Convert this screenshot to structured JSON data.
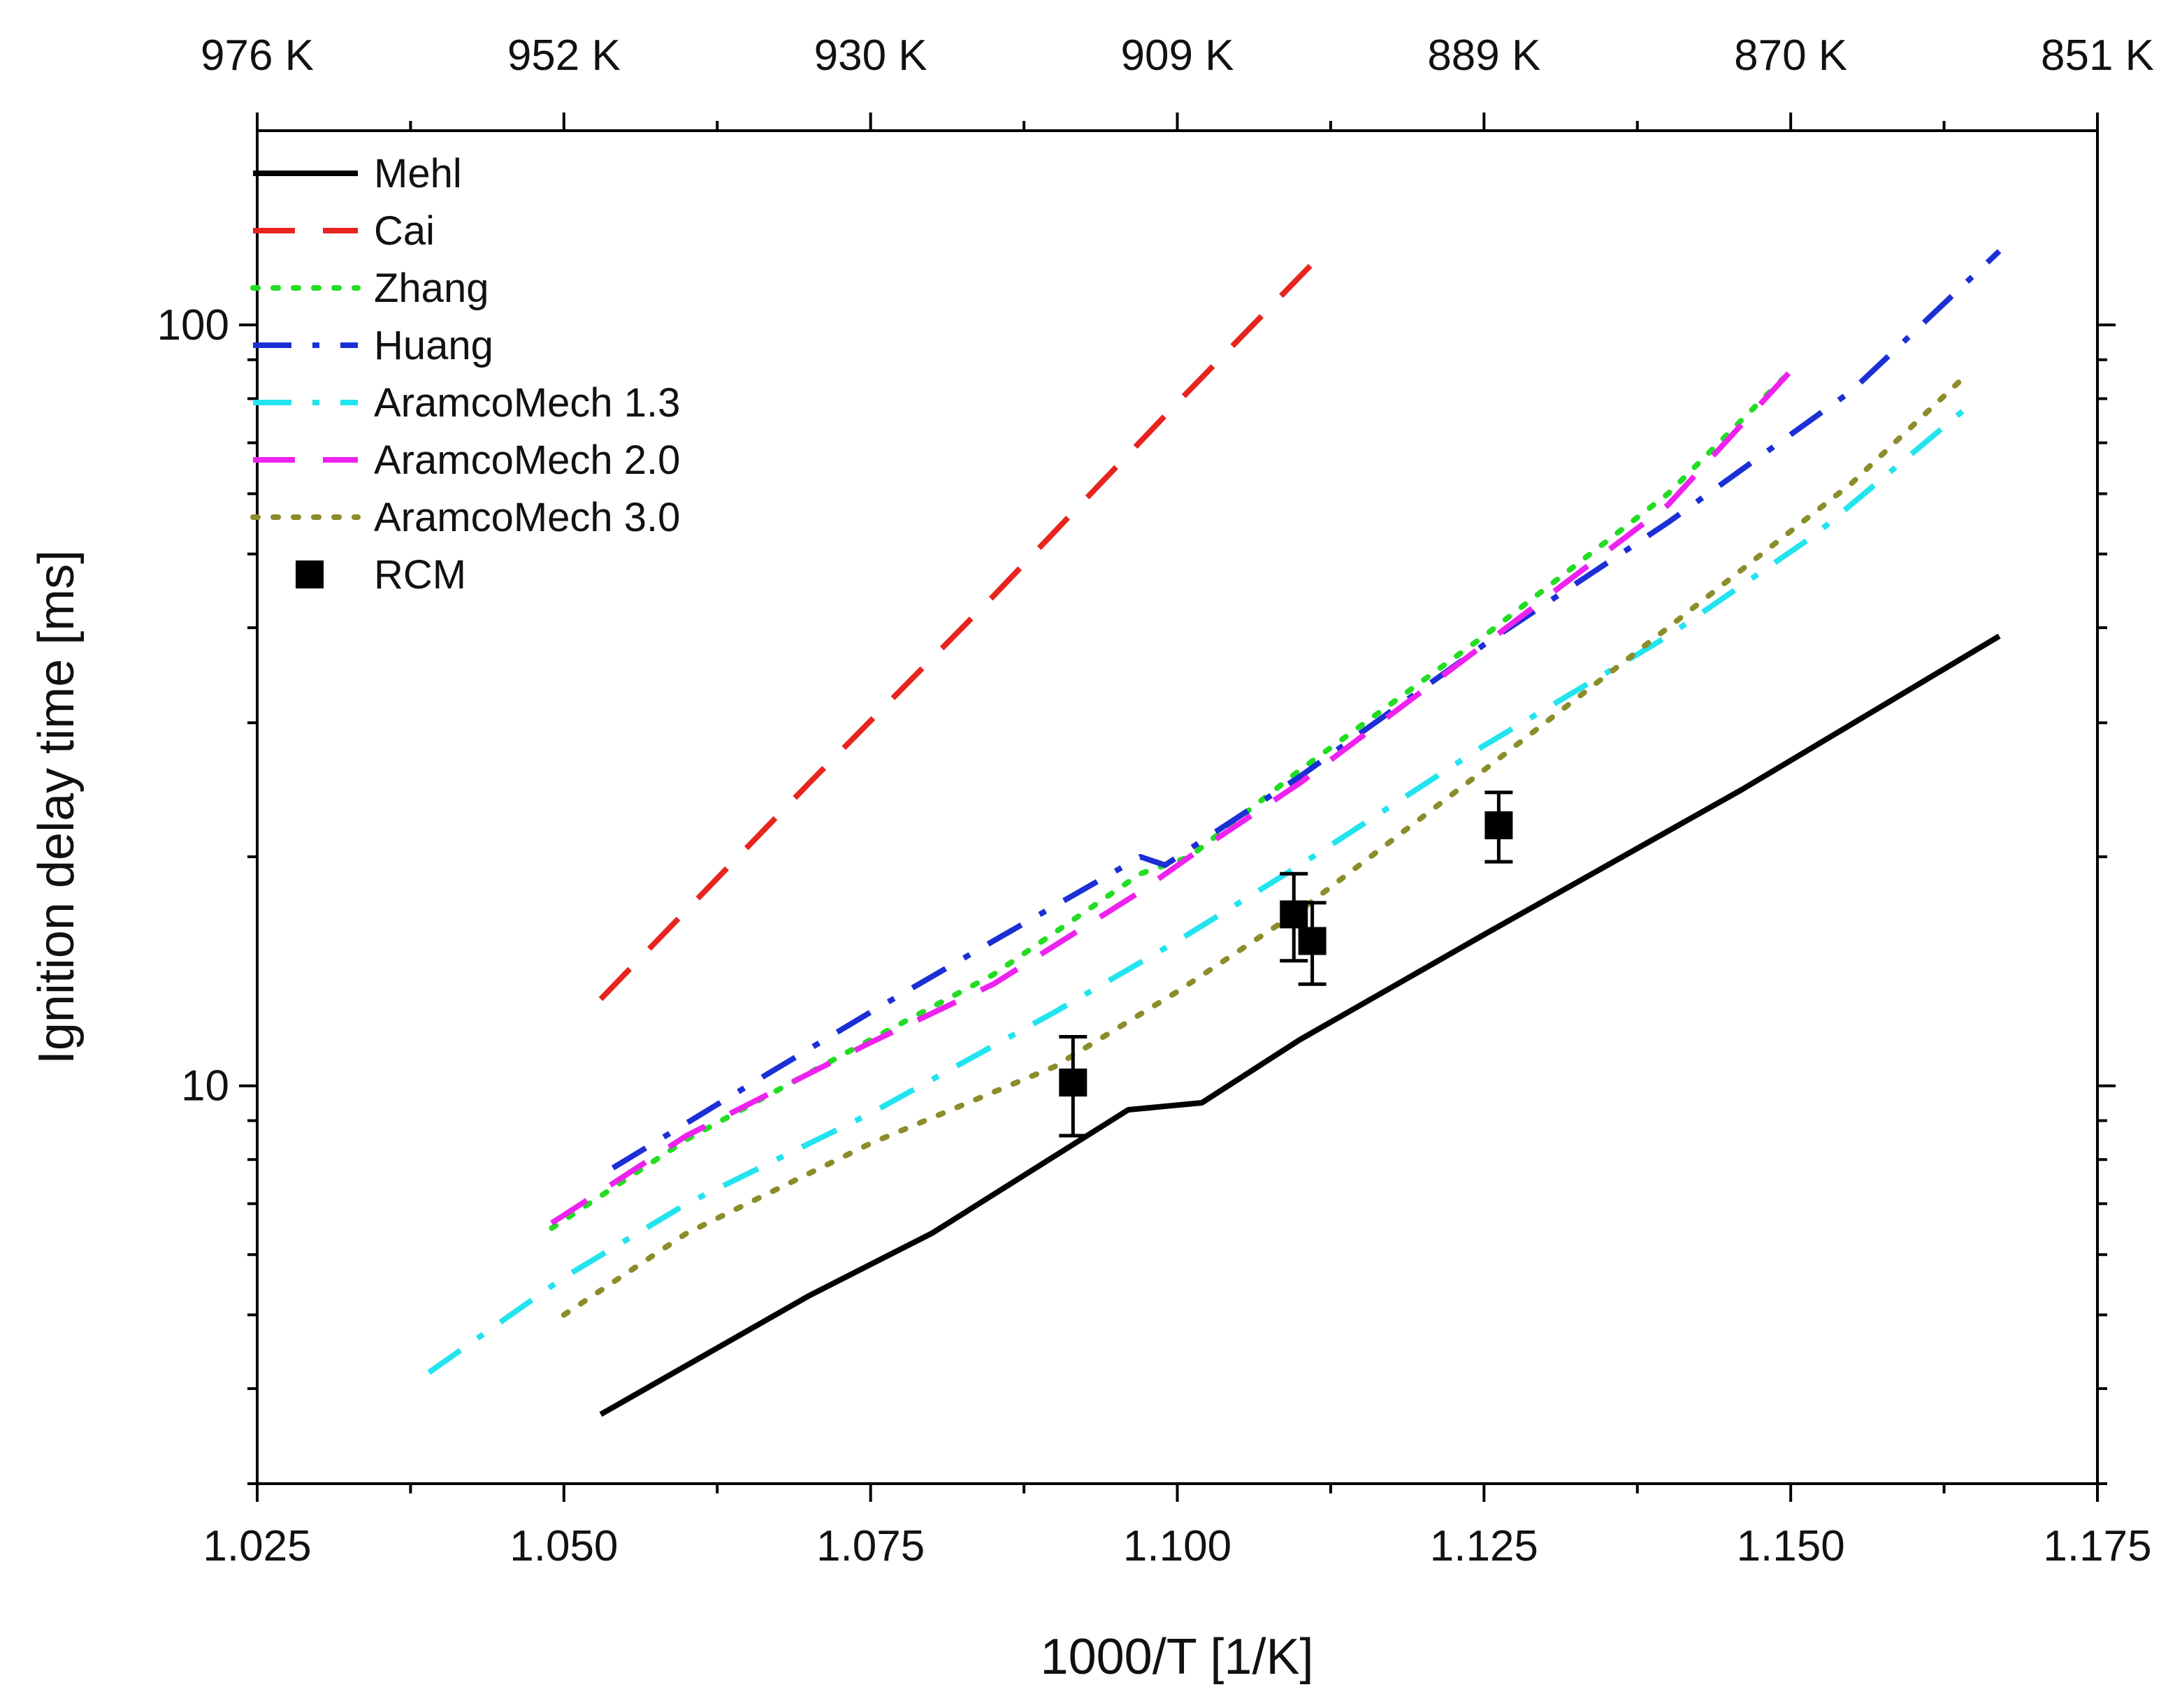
{
  "chart_data": {
    "type": "line",
    "title": "",
    "xlabel": "1000/T [1/K]",
    "ylabel": "Ignition delay time [ms]",
    "xlim": [
      1.025,
      1.175
    ],
    "ylim": [
      3.0,
      180
    ],
    "yscale": "log",
    "grid": false,
    "legend_position": "top-left",
    "x_tick_labels": [
      "1.025",
      "1.050",
      "1.075",
      "1.100",
      "1.125",
      "1.150",
      "1.175"
    ],
    "x_tick_values": [
      1.025,
      1.05,
      1.075,
      1.1,
      1.125,
      1.15,
      1.175
    ],
    "y_tick_labels": [
      "10",
      "100"
    ],
    "y_tick_values": [
      10,
      100
    ],
    "top_axis_labels": [
      "976 K",
      "952 K",
      "930 K",
      "909 K",
      "889 K",
      "870 K",
      "851 K"
    ],
    "series": [
      {
        "name": "Mehl",
        "color": "#000000",
        "style": "solid",
        "x": [
          1.053,
          1.07,
          1.08,
          1.096,
          1.102,
          1.11,
          1.125,
          1.146,
          1.167
        ],
        "y": [
          3.7,
          5.3,
          6.4,
          9.3,
          9.5,
          11.5,
          15.8,
          24.5,
          39.0
        ]
      },
      {
        "name": "Cai",
        "color": "#e8241f",
        "style": "dash",
        "x": [
          1.053,
          1.07,
          1.085,
          1.1,
          1.112
        ],
        "y": [
          13.0,
          25.0,
          44.0,
          79.0,
          125.0
        ]
      },
      {
        "name": "Zhang",
        "color": "#22dd22",
        "style": "dot",
        "x": [
          1.049,
          1.06,
          1.075,
          1.085,
          1.097,
          1.101,
          1.11,
          1.125,
          1.14,
          1.15
        ],
        "y": [
          6.5,
          8.5,
          11.5,
          14.0,
          19.0,
          20.0,
          26.0,
          39.0,
          60.0,
          87.0
        ]
      },
      {
        "name": "Huang",
        "color": "#1b2fd6",
        "style": "dashdot",
        "x": [
          1.054,
          1.065,
          1.075,
          1.085,
          1.097,
          1.099,
          1.11,
          1.125,
          1.14,
          1.155,
          1.167
        ],
        "y": [
          7.8,
          10.0,
          12.5,
          15.5,
          20.0,
          19.5,
          25.5,
          38.0,
          55.0,
          82.0,
          125.0
        ]
      },
      {
        "name": "AramcoMech 1.3",
        "color": "#22e4ee",
        "style": "dashdot",
        "x": [
          1.039,
          1.05,
          1.06,
          1.075,
          1.09,
          1.1,
          1.11,
          1.125,
          1.14,
          1.152,
          1.164
        ],
        "y": [
          4.2,
          5.6,
          7.0,
          9.2,
          12.5,
          15.5,
          19.5,
          28.0,
          39.0,
          53.0,
          77.0
        ]
      },
      {
        "name": "AramcoMech 2.0",
        "color": "#ee22ee",
        "style": "dash",
        "x": [
          1.049,
          1.06,
          1.075,
          1.085,
          1.097,
          1.101,
          1.11,
          1.125,
          1.14,
          1.15
        ],
        "y": [
          6.6,
          8.6,
          11.4,
          13.6,
          18.0,
          20.0,
          25.0,
          38.0,
          58.0,
          87.0
        ]
      },
      {
        "name": "AramcoMech 3.0",
        "color": "#8c8c2a",
        "style": "dot",
        "x": [
          1.05,
          1.06,
          1.075,
          1.09,
          1.1,
          1.11,
          1.125,
          1.14,
          1.155,
          1.164
        ],
        "y": [
          5.0,
          6.4,
          8.4,
          10.6,
          13.3,
          17.0,
          26.0,
          40.0,
          62.0,
          85.0
        ]
      },
      {
        "name": "RCM",
        "color": "#000000",
        "style": "marker",
        "x": [
          1.0915,
          1.1095,
          1.111,
          1.1262
        ],
        "y": [
          10.1,
          16.8,
          15.5,
          22.0
        ],
        "err": [
          1.5,
          2.2,
          1.9,
          2.3
        ]
      }
    ]
  }
}
